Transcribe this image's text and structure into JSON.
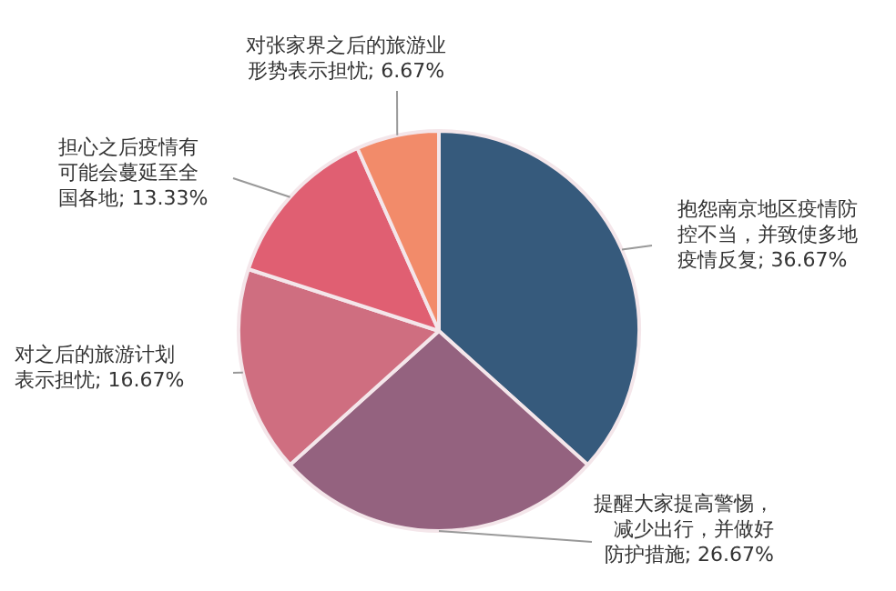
{
  "chart_data": {
    "type": "pie",
    "categories": [
      "抱怨南京地区疫情防控不当，并致使多地疫情反复",
      "提醒大家提高警惕，减少出行，并做好防护措施",
      "对之后的旅游计划表示担忧",
      "担心之后疫情有可能会蔓延至全国各地",
      "对张家界之后的旅游业形势表示担忧"
    ],
    "values": [
      36.67,
      26.67,
      16.67,
      13.33,
      6.67
    ],
    "colors": [
      "#365a7c",
      "#94627f",
      "#cf6e80",
      "#e05f72",
      "#f28b6a"
    ],
    "value_labels": [
      "; 36.67%",
      "; 26.67%",
      "; 16.67%",
      "; 13.33%",
      "; 6.67%"
    ],
    "legend": false
  }
}
